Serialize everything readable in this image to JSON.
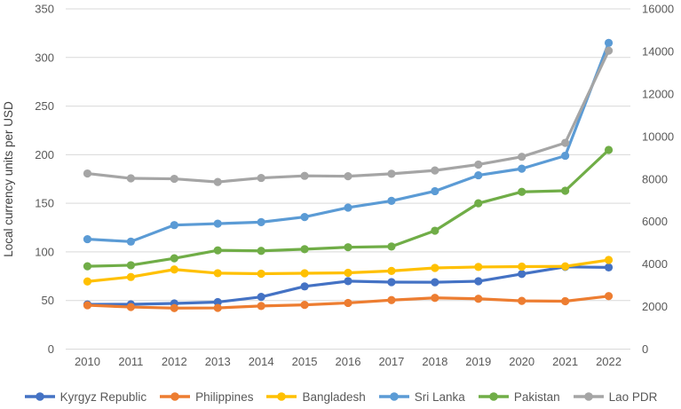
{
  "chart_data": {
    "type": "line",
    "title": "",
    "ylabel": "Local currency units per USD",
    "xlabel": "",
    "grid": "horizontal",
    "legend_position": "bottom",
    "x_categories": [
      "2010",
      "2011",
      "2012",
      "2013",
      "2014",
      "2015",
      "2016",
      "2017",
      "2018",
      "2019",
      "2020",
      "2021",
      "2022"
    ],
    "left_axis": {
      "min": 0,
      "max": 350,
      "ticks": [
        0,
        50,
        100,
        150,
        200,
        250,
        300,
        350
      ]
    },
    "right_axis": {
      "min": 0,
      "max": 16000,
      "ticks": [
        0,
        2000,
        4000,
        6000,
        8000,
        10000,
        12000,
        14000,
        16000
      ]
    },
    "series": [
      {
        "name": "Kyrgyz Republic",
        "color": "#4472C4",
        "axis": "left",
        "values": [
          46.0,
          46.1,
          47.0,
          48.4,
          53.7,
          64.5,
          69.9,
          68.9,
          68.8,
          69.8,
          77.3,
          84.6,
          84.1
        ]
      },
      {
        "name": "Philippines",
        "color": "#ED7D31",
        "axis": "left",
        "values": [
          45.1,
          43.3,
          42.2,
          42.4,
          44.4,
          45.5,
          47.5,
          50.4,
          52.7,
          51.8,
          49.6,
          49.3,
          54.5
        ]
      },
      {
        "name": "Bangladesh",
        "color": "#FFC000",
        "axis": "left",
        "values": [
          69.6,
          74.2,
          81.9,
          78.1,
          77.6,
          78.0,
          78.5,
          80.4,
          83.5,
          84.5,
          84.9,
          85.1,
          91.7
        ]
      },
      {
        "name": "Sri Lanka",
        "color": "#5B9BD5",
        "axis": "left",
        "values": [
          113.1,
          110.6,
          127.6,
          129.1,
          130.6,
          135.9,
          145.6,
          152.5,
          162.5,
          178.8,
          185.6,
          198.9,
          315.0
        ]
      },
      {
        "name": "Pakistan",
        "color": "#70AD47",
        "axis": "left",
        "values": [
          85.2,
          86.3,
          93.4,
          101.6,
          101.1,
          102.8,
          104.8,
          105.5,
          121.8,
          150.0,
          161.8,
          162.9,
          204.9
        ]
      },
      {
        "name": "Lao PDR",
        "color": "#A5A5A5",
        "axis": "right",
        "values": [
          8259,
          8030,
          8008,
          7860,
          8049,
          8148,
          8129,
          8245,
          8401,
          8679,
          9045,
          9698,
          14035
        ]
      }
    ],
    "gridline_color": "#D9D9D9",
    "tick_text_color": "#595959"
  }
}
